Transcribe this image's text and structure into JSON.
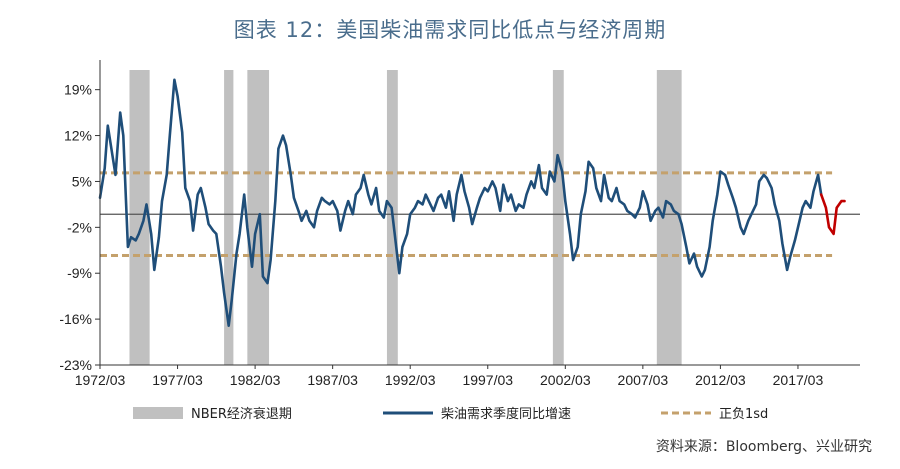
{
  "title": "图表 12：美国柴油需求同比低点与经济周期",
  "source": "资料来源：Bloomberg、兴业研究",
  "chart_data": {
    "type": "line",
    "ylim": [
      -23,
      22
    ],
    "yticks": [
      19,
      12,
      5,
      -2,
      -9,
      -16,
      -23
    ],
    "ytick_labels": [
      "19%",
      "12%",
      "5%",
      "-2%",
      "-9%",
      "-16%",
      "-23%"
    ],
    "xlim": [
      1972.0,
      2021.0
    ],
    "xticks": [
      1972.0,
      1977.0,
      1982.0,
      1987.0,
      1992.0,
      1997.0,
      2002.0,
      2007.0,
      2012.0,
      2017.0
    ],
    "xtick_labels": [
      "1972/03",
      "1977/03",
      "1982/03",
      "1987/03",
      "1992/03",
      "1997/03",
      "2002/03",
      "2007/03",
      "2012/03",
      "2017/03"
    ],
    "zero_line": 0,
    "recessions": [
      {
        "start": 1973.9,
        "end": 1975.2
      },
      {
        "start": 1980.0,
        "end": 1980.6
      },
      {
        "start": 1981.5,
        "end": 1982.9
      },
      {
        "start": 1990.5,
        "end": 1991.2
      },
      {
        "start": 2001.2,
        "end": 2001.9
      },
      {
        "start": 2007.9,
        "end": 2009.5
      }
    ],
    "sd_upper": 6.3,
    "sd_lower": -6.3,
    "series": [
      {
        "name": "柴油需求季度同比增速",
        "color": "#1f4e79",
        "x": [
          1972.0,
          1972.3,
          1972.5,
          1972.8,
          1973.0,
          1973.3,
          1973.5,
          1973.8,
          1974.0,
          1974.3,
          1974.5,
          1974.8,
          1975.0,
          1975.3,
          1975.5,
          1975.8,
          1976.0,
          1976.3,
          1976.5,
          1976.8,
          1977.0,
          1977.3,
          1977.5,
          1977.8,
          1978.0,
          1978.3,
          1978.5,
          1978.8,
          1979.0,
          1979.3,
          1979.5,
          1979.8,
          1980.0,
          1980.3,
          1980.5,
          1980.8,
          1981.0,
          1981.3,
          1981.5,
          1981.8,
          1982.0,
          1982.3,
          1982.5,
          1982.8,
          1983.0,
          1983.3,
          1983.5,
          1983.8,
          1984.0,
          1984.3,
          1984.5,
          1984.8,
          1985.0,
          1985.3,
          1985.5,
          1985.8,
          1986.0,
          1986.3,
          1986.5,
          1986.8,
          1987.0,
          1987.3,
          1987.5,
          1987.8,
          1988.0,
          1988.3,
          1988.5,
          1988.8,
          1989.0,
          1989.3,
          1989.5,
          1989.8,
          1990.0,
          1990.3,
          1990.5,
          1990.8,
          1991.0,
          1991.3,
          1991.5,
          1991.8,
          1992.0,
          1992.3,
          1992.5,
          1992.8,
          1993.0,
          1993.3,
          1993.5,
          1993.8,
          1994.0,
          1994.3,
          1994.5,
          1994.8,
          1995.0,
          1995.3,
          1995.5,
          1995.8,
          1996.0,
          1996.3,
          1996.5,
          1996.8,
          1997.0,
          1997.3,
          1997.5,
          1997.8,
          1998.0,
          1998.3,
          1998.5,
          1998.8,
          1999.0,
          1999.3,
          1999.5,
          1999.8,
          2000.0,
          2000.3,
          2000.5,
          2000.8,
          2001.0,
          2001.3,
          2001.5,
          2001.8,
          2002.0,
          2002.3,
          2002.5,
          2002.8,
          2003.0,
          2003.3,
          2003.5,
          2003.8,
          2004.0,
          2004.3,
          2004.5,
          2004.8,
          2005.0,
          2005.3,
          2005.5,
          2005.8,
          2006.0,
          2006.3,
          2006.5,
          2006.8,
          2007.0,
          2007.3,
          2007.5,
          2007.8,
          2008.0,
          2008.3,
          2008.5,
          2008.8,
          2009.0,
          2009.3,
          2009.5,
          2009.8,
          2010.0,
          2010.3,
          2010.5,
          2010.8,
          2011.0,
          2011.3,
          2011.5,
          2011.8,
          2012.0,
          2012.3,
          2012.5,
          2012.8,
          2013.0,
          2013.3,
          2013.5,
          2013.8,
          2014.0,
          2014.3,
          2014.5,
          2014.8,
          2015.0,
          2015.3,
          2015.5,
          2015.8,
          2016.0,
          2016.3,
          2016.5,
          2016.8,
          2017.0,
          2017.3,
          2017.5,
          2017.8,
          2018.0,
          2018.3,
          2018.5
        ],
        "y": [
          2.5,
          7.0,
          13.5,
          9.0,
          6.0,
          15.5,
          12.0,
          -5.0,
          -3.5,
          -4.0,
          -3.0,
          -1.0,
          1.5,
          -3.0,
          -8.5,
          -3.5,
          2.0,
          6.0,
          12.0,
          20.5,
          18.0,
          12.5,
          4.0,
          2.0,
          -2.5,
          3.0,
          4.0,
          1.0,
          -1.5,
          -2.5,
          -3.0,
          -8.0,
          -12.0,
          -17.0,
          -13.0,
          -6.0,
          -3.0,
          3.0,
          -2.0,
          -8.0,
          -3.0,
          0.0,
          -9.5,
          -10.5,
          -7.0,
          2.0,
          10.0,
          12.0,
          10.5,
          6.0,
          2.5,
          0.5,
          -1.0,
          0.5,
          -1.0,
          -2.0,
          0.5,
          2.5,
          2.0,
          1.5,
          2.0,
          0.5,
          -2.5,
          0.5,
          2.0,
          0.0,
          3.0,
          4.0,
          6.0,
          3.0,
          1.5,
          4.0,
          0.5,
          -0.5,
          2.0,
          1.0,
          -3.0,
          -9.0,
          -5.0,
          -3.0,
          0.0,
          1.0,
          2.0,
          1.5,
          3.0,
          1.5,
          0.5,
          2.5,
          3.0,
          1.0,
          3.5,
          -1.0,
          3.0,
          6.0,
          3.5,
          1.0,
          -1.5,
          1.0,
          2.5,
          4.0,
          3.5,
          5.0,
          4.0,
          0.5,
          4.5,
          2.0,
          3.0,
          0.5,
          1.5,
          1.0,
          3.0,
          5.0,
          4.0,
          7.5,
          4.0,
          3.0,
          6.5,
          5.0,
          9.0,
          6.5,
          2.0,
          -3.0,
          -7.0,
          -5.0,
          0.0,
          3.5,
          8.0,
          7.0,
          4.0,
          2.0,
          6.0,
          2.5,
          2.0,
          4.0,
          2.0,
          1.5,
          0.5,
          0.0,
          -0.5,
          1.0,
          3.5,
          1.5,
          -1.0,
          0.5,
          1.0,
          -0.5,
          2.0,
          1.5,
          0.5,
          0.0,
          -1.5,
          -5.0,
          -7.5,
          -6.0,
          -8.0,
          -9.5,
          -8.5,
          -5.0,
          -1.0,
          3.0,
          6.5,
          6.0,
          4.5,
          2.5,
          1.0,
          -2.0,
          -3.0,
          -1.0,
          0.0,
          1.5,
          5.0,
          6.0,
          5.5,
          4.0,
          1.5,
          -1.0,
          -4.5,
          -8.5,
          -6.5,
          -4.0,
          -2.0,
          1.0,
          2.0,
          1.0,
          3.5,
          6.0,
          3.0
        ]
      },
      {
        "name": "",
        "color": "#c00000",
        "x": [
          2018.5,
          2018.8,
          2019.0,
          2019.3,
          2019.5,
          2019.8,
          2020.0
        ],
        "y": [
          3.0,
          1.0,
          -2.0,
          -3.0,
          1.0,
          2.0,
          2.0
        ]
      }
    ],
    "legend": [
      {
        "label": "NBER经济衰退期",
        "kind": "rect",
        "color": "#c0c0c0"
      },
      {
        "label": "柴油需求季度同比增速",
        "kind": "line",
        "color": "#1f4e79"
      },
      {
        "label": "正负1sd",
        "kind": "dash",
        "color": "#c4a16c"
      }
    ],
    "colors": {
      "recession": "#c0c0c0",
      "sd": "#c4a16c",
      "zero": "#555555",
      "axis": "#333333"
    }
  }
}
